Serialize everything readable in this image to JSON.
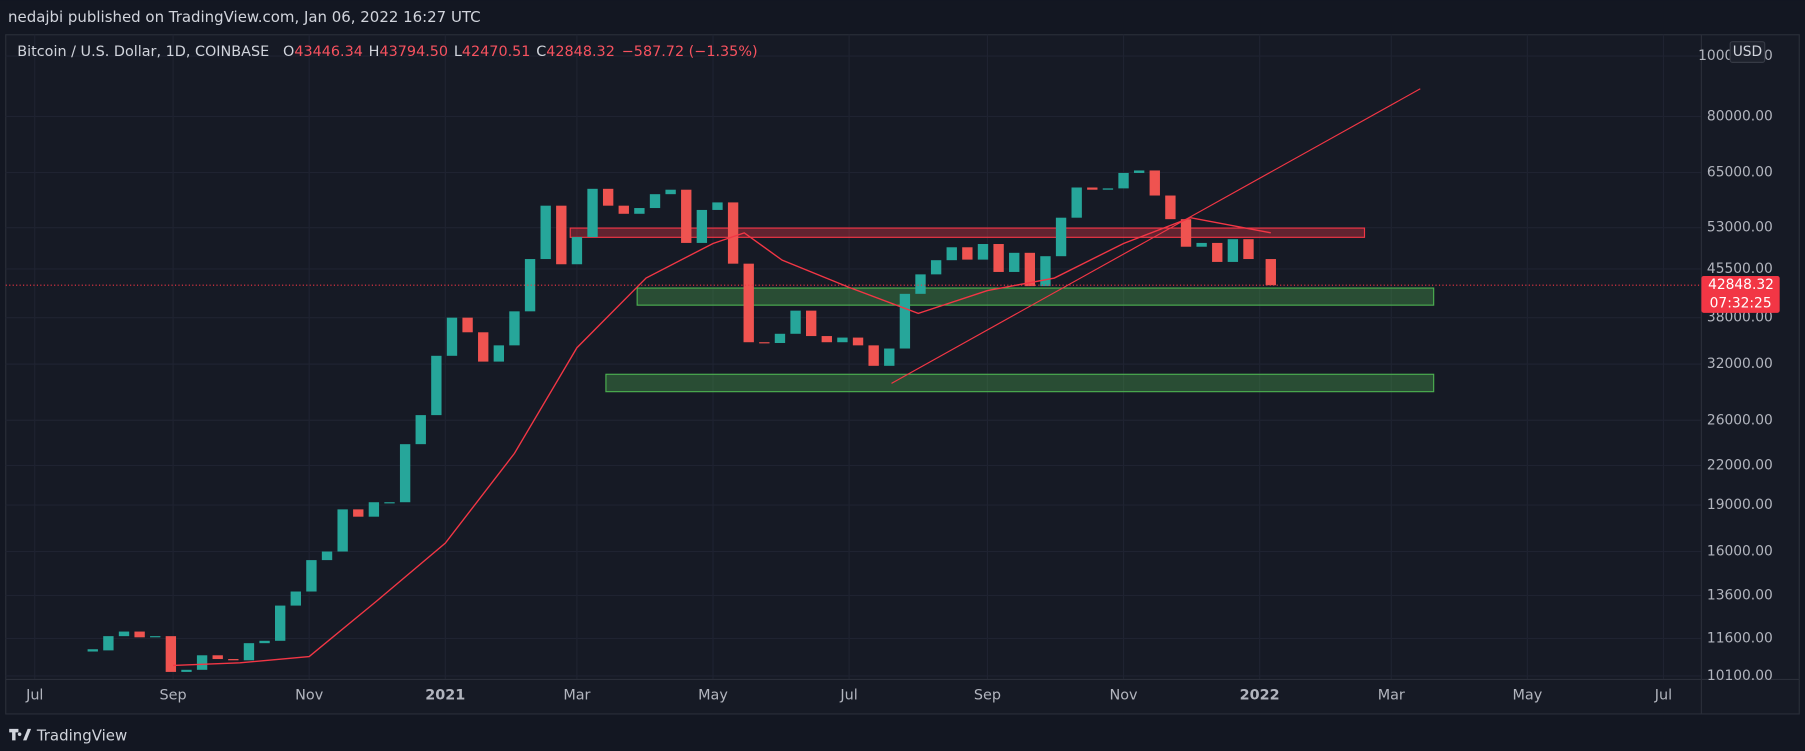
{
  "header": {
    "published": "nedajbi published on TradingView.com, Jan 06, 2022 16:27 UTC",
    "symbol": "Bitcoin / U.S. Dollar, 1D, COINBASE",
    "ohlc": [
      {
        "key": "O",
        "value": "43446.34"
      },
      {
        "key": "H",
        "value": "43794.50"
      },
      {
        "key": "L",
        "value": "42470.51"
      },
      {
        "key": "C",
        "value": "42848.32"
      }
    ],
    "change": "−587.72 (−1.35%)",
    "currency": "USD",
    "countdown": "07:32:25",
    "brand": "TradingView"
  },
  "chart_data": {
    "type": "candlestick",
    "log_scale": true,
    "grid": true,
    "up_color": "#26a69a",
    "down_color": "#ef5350",
    "x": [
      "2020-07-27",
      "2020-08-03",
      "2020-08-10",
      "2020-08-17",
      "2020-08-24",
      "2020-08-31",
      "2020-09-07",
      "2020-09-14",
      "2020-09-21",
      "2020-09-28",
      "2020-10-05",
      "2020-10-12",
      "2020-10-19",
      "2020-10-26",
      "2020-11-02",
      "2020-11-09",
      "2020-11-16",
      "2020-11-23",
      "2020-11-30",
      "2020-12-07",
      "2020-12-14",
      "2020-12-21",
      "2020-12-28",
      "2021-01-04",
      "2021-01-11",
      "2021-01-18",
      "2021-01-25",
      "2021-02-01",
      "2021-02-08",
      "2021-02-15",
      "2021-02-22",
      "2021-03-01",
      "2021-03-08",
      "2021-03-15",
      "2021-03-22",
      "2021-03-29",
      "2021-04-05",
      "2021-04-12",
      "2021-04-19",
      "2021-04-26",
      "2021-05-03",
      "2021-05-10",
      "2021-05-17",
      "2021-05-24",
      "2021-05-31",
      "2021-06-07",
      "2021-06-14",
      "2021-06-21",
      "2021-06-28",
      "2021-07-05",
      "2021-07-12",
      "2021-07-19",
      "2021-07-26",
      "2021-08-02",
      "2021-08-09",
      "2021-08-16",
      "2021-08-23",
      "2021-08-30",
      "2021-09-06",
      "2021-09-13",
      "2021-09-20",
      "2021-09-27",
      "2021-10-04",
      "2021-10-11",
      "2021-10-18",
      "2021-10-25",
      "2021-11-01",
      "2021-11-08",
      "2021-11-15",
      "2021-11-22",
      "2021-11-29",
      "2021-12-06",
      "2021-12-13",
      "2021-12-20",
      "2021-12-27",
      "2022-01-06"
    ],
    "close": {
      "values": [
        11100,
        11700,
        11900,
        11650,
        11700,
        10250,
        10330,
        10900,
        10750,
        10700,
        11400,
        11500,
        13100,
        13800,
        15500,
        16000,
        18700,
        18200,
        19200,
        19200,
        23800,
        26500,
        33000,
        38000,
        36000,
        32300,
        34300,
        38900,
        47200,
        57500,
        46300,
        51200,
        61200,
        57500,
        55800,
        57000,
        60000,
        61000,
        50100,
        56600,
        58200,
        46400,
        34700,
        34600,
        35800,
        39000,
        35500,
        34700,
        35300,
        34300,
        31800,
        33900,
        41500,
        44600,
        47000,
        49300,
        47100,
        49900,
        45000,
        48300,
        42700,
        47700,
        55000,
        61500,
        61000,
        61300,
        64900,
        65500,
        59700,
        54700,
        49400,
        50100,
        46700,
        50800,
        47200,
        42848.32
      ]
    },
    "ma": {
      "color": "#f23645",
      "x": [
        "2020-09-01",
        "2020-10-01",
        "2020-11-01",
        "2020-12-01",
        "2021-01-01",
        "2021-02-01",
        "2021-03-01",
        "2021-04-01",
        "2021-05-01",
        "2021-05-15",
        "2021-06-01",
        "2021-07-01",
        "2021-08-01",
        "2021-09-01",
        "2021-10-01",
        "2021-11-01",
        "2021-12-01",
        "2022-01-06"
      ],
      "values": [
        10500,
        10600,
        10850,
        13300,
        16500,
        23000,
        34000,
        44000,
        50000,
        52000,
        47000,
        42500,
        38600,
        42000,
        44000,
        50000,
        55000,
        52000
      ]
    },
    "zones": [
      {
        "color": "#f23645",
        "start": "2021-02-26",
        "end": "2022-02-17",
        "top": 52930,
        "bottom": 51150
      },
      {
        "color": "#4caf50",
        "start": "2021-03-28",
        "end": "2022-03-20",
        "top": 42400,
        "bottom": 39800
      },
      {
        "color": "#4caf50",
        "start": "2021-03-14",
        "end": "2022-03-20",
        "top": 30820,
        "bottom": 28900
      }
    ],
    "trendlines": [
      {
        "color": "#f23645",
        "start": "2021-07-20",
        "end": "2022-03-14",
        "from": 29800,
        "to": 88600
      }
    ],
    "xlim": [
      "2020-06-18",
      "2022-07-18"
    ],
    "xticks": [
      {
        "value": "2020-07-01",
        "label": "Jul"
      },
      {
        "value": "2020-09-01",
        "label": "Sep"
      },
      {
        "value": "2020-11-01",
        "label": "Nov"
      },
      {
        "value": "2021-01-01",
        "label": "2021"
      },
      {
        "value": "2021-03-01",
        "label": "Mar"
      },
      {
        "value": "2021-05-01",
        "label": "May"
      },
      {
        "value": "2021-07-01",
        "label": "Jul"
      },
      {
        "value": "2021-09-01",
        "label": "Sep"
      },
      {
        "value": "2021-11-01",
        "label": "Nov"
      },
      {
        "value": "2022-01-01",
        "label": "2022"
      },
      {
        "value": "2022-03-01",
        "label": "Mar"
      },
      {
        "value": "2022-05-01",
        "label": "May"
      },
      {
        "value": "2022-07-01",
        "label": "Jul"
      }
    ],
    "ylim": [
      9970,
      108200
    ],
    "yticks": [
      {
        "value": 10100,
        "label": "10100.00"
      },
      {
        "value": 11600,
        "label": "11600.00"
      },
      {
        "value": 13600,
        "label": "13600.00"
      },
      {
        "value": 16000,
        "label": "16000.00"
      },
      {
        "value": 19000,
        "label": "19000.00"
      },
      {
        "value": 22000,
        "label": "22000.00"
      },
      {
        "value": 26000,
        "label": "26000.00"
      },
      {
        "value": 32000,
        "label": "32000.00"
      },
      {
        "value": 38000,
        "label": "38000.00"
      },
      {
        "value": 45500,
        "label": "45500.00"
      },
      {
        "value": 53000,
        "label": "53000.00"
      },
      {
        "value": 65000,
        "label": "65000.00"
      },
      {
        "value": 80000,
        "label": "80000.00"
      },
      {
        "value": 100000,
        "label": "100000.00"
      }
    ]
  }
}
